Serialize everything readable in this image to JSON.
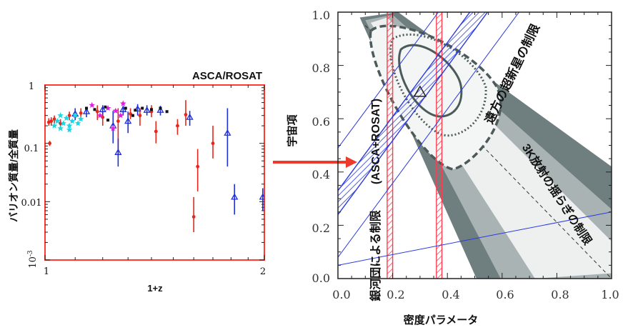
{
  "chart_data": [
    {
      "type": "scatter",
      "title": "ASCA/ROSAT",
      "xlabel": "1+z",
      "ylabel": "バリオン質量/全質量",
      "x_scale": "log",
      "y_scale": "log",
      "xlim": [
        1,
        2
      ],
      "ylim": [
        0.001,
        1
      ],
      "x_ticks": [
        "1",
        "2"
      ],
      "y_ticks": [
        "1",
        "0.1",
        "0.01",
        "10-3"
      ],
      "y_tick_sup": {
        "base": "10",
        "exp": "-3"
      },
      "colors": {
        "title": "#ff4d3a",
        "frame": "#ff3b30",
        "red": "#e8261c",
        "blue": "#1f2fd8",
        "cyan": "#19d7e6",
        "magenta": "#e020e0",
        "black": "#111111"
      },
      "series": [
        {
          "marker": "red-dot",
          "color": "#e8261c",
          "points": [
            {
              "x": 1.012,
              "y": 0.23,
              "lo": 0.2,
              "hi": 0.27
            },
            {
              "x": 1.02,
              "y": 0.24,
              "lo": 0.2,
              "hi": 0.28
            },
            {
              "x": 1.015,
              "y": 0.1,
              "lo": 0.09,
              "hi": 0.11
            },
            {
              "x": 1.03,
              "y": 0.26,
              "lo": 0.22,
              "hi": 0.3
            },
            {
              "x": 1.05,
              "y": 0.22,
              "lo": 0.18,
              "hi": 0.26
            },
            {
              "x": 1.08,
              "y": 0.3,
              "lo": 0.25,
              "hi": 0.35
            },
            {
              "x": 1.12,
              "y": 0.33,
              "lo": 0.27,
              "hi": 0.4
            },
            {
              "x": 1.18,
              "y": 0.35,
              "lo": 0.25,
              "hi": 0.45
            },
            {
              "x": 1.2,
              "y": 0.28,
              "lo": 0.2,
              "hi": 0.36
            },
            {
              "x": 1.26,
              "y": 0.24,
              "lo": 0.06,
              "hi": 0.4
            },
            {
              "x": 1.31,
              "y": 0.32,
              "lo": 0.26,
              "hi": 0.4
            },
            {
              "x": 1.35,
              "y": 0.3,
              "lo": 0.2,
              "hi": 0.4
            },
            {
              "x": 1.4,
              "y": 0.35,
              "lo": 0.28,
              "hi": 0.45
            },
            {
              "x": 1.42,
              "y": 0.16,
              "lo": 0.1,
              "hi": 0.24
            },
            {
              "x": 1.56,
              "y": 0.31,
              "lo": 0.2,
              "hi": 0.55
            },
            {
              "x": 1.6,
              "y": 0.0055,
              "lo": 0.003,
              "hi": 0.012
            },
            {
              "x": 1.62,
              "y": 0.04,
              "lo": 0.015,
              "hi": 0.08
            },
            {
              "x": 1.7,
              "y": 0.1,
              "lo": 0.055,
              "hi": 0.2
            },
            {
              "x": 1.52,
              "y": 0.2,
              "lo": 0.14,
              "hi": 0.26
            }
          ]
        },
        {
          "marker": "blue-triangle",
          "color": "#1f2fd8",
          "points": [
            {
              "x": 1.1,
              "y": 0.32,
              "lo": 0.25,
              "hi": 0.4
            },
            {
              "x": 1.14,
              "y": 0.35,
              "lo": 0.28,
              "hi": 0.42
            },
            {
              "x": 1.2,
              "y": 0.38,
              "lo": 0.3,
              "hi": 0.45
            },
            {
              "x": 1.24,
              "y": 0.2,
              "lo": 0.1,
              "hi": 0.36
            },
            {
              "x": 1.26,
              "y": 0.07,
              "lo": 0.04,
              "hi": 0.12
            },
            {
              "x": 1.28,
              "y": 0.38,
              "lo": 0.3,
              "hi": 0.44
            },
            {
              "x": 1.3,
              "y": 0.24,
              "lo": 0.15,
              "hi": 0.35
            },
            {
              "x": 1.34,
              "y": 0.39,
              "lo": 0.3,
              "hi": 0.47
            },
            {
              "x": 1.38,
              "y": 0.37,
              "lo": 0.3,
              "hi": 0.45
            },
            {
              "x": 1.44,
              "y": 0.37,
              "lo": 0.3,
              "hi": 0.44
            },
            {
              "x": 1.58,
              "y": 0.28,
              "lo": 0.2,
              "hi": 0.36
            },
            {
              "x": 1.78,
              "y": 0.15,
              "lo": 0.04,
              "hi": 0.4
            },
            {
              "x": 1.82,
              "y": 0.012,
              "lo": 0.006,
              "hi": 0.02
            },
            {
              "x": 1.99,
              "y": 0.012,
              "lo": 0.007,
              "hi": 0.017
            }
          ]
        },
        {
          "marker": "cyan-star",
          "color": "#19d7e6",
          "points": [
            {
              "x": 1.03,
              "y": 0.2
            },
            {
              "x": 1.04,
              "y": 0.24
            },
            {
              "x": 1.05,
              "y": 0.18
            },
            {
              "x": 1.06,
              "y": 0.22
            },
            {
              "x": 1.07,
              "y": 0.27
            },
            {
              "x": 1.08,
              "y": 0.2
            },
            {
              "x": 1.09,
              "y": 0.24
            },
            {
              "x": 1.1,
              "y": 0.3
            },
            {
              "x": 1.11,
              "y": 0.22
            },
            {
              "x": 1.05,
              "y": 0.3
            },
            {
              "x": 1.08,
              "y": 0.17
            },
            {
              "x": 1.12,
              "y": 0.26
            }
          ]
        },
        {
          "marker": "magenta-star",
          "color": "#e020e0",
          "points": [
            {
              "x": 1.16,
              "y": 0.45
            },
            {
              "x": 1.19,
              "y": 0.3
            },
            {
              "x": 1.22,
              "y": 0.4
            },
            {
              "x": 1.24,
              "y": 0.18
            },
            {
              "x": 1.28,
              "y": 0.48
            },
            {
              "x": 1.27,
              "y": 0.3
            },
            {
              "x": 1.25,
              "y": 0.36
            }
          ]
        },
        {
          "marker": "black-square",
          "color": "#111111",
          "points": [
            {
              "x": 1.14,
              "y": 0.4
            },
            {
              "x": 1.17,
              "y": 0.38
            },
            {
              "x": 1.21,
              "y": 0.42
            },
            {
              "x": 1.29,
              "y": 0.4
            },
            {
              "x": 1.33,
              "y": 0.37
            },
            {
              "x": 1.36,
              "y": 0.4
            },
            {
              "x": 1.4,
              "y": 0.38
            },
            {
              "x": 1.44,
              "y": 0.4
            },
            {
              "x": 1.47,
              "y": 0.35
            },
            {
              "x": 1.22,
              "y": 0.25
            },
            {
              "x": 1.32,
              "y": 0.3
            }
          ]
        }
      ]
    },
    {
      "type": "contour",
      "xlabel": "密度パラメータ",
      "ylabel": "宇宙項",
      "xlim": [
        0,
        1
      ],
      "ylim": [
        0,
        1
      ],
      "x_ticks": [
        "0.0",
        "0.2",
        "0.4",
        "0.6",
        "0.8",
        "1.0"
      ],
      "y_ticks": [
        "0.0",
        "0.2",
        "0.4",
        "0.6",
        "0.8",
        "1.0"
      ],
      "best_fit": {
        "x": 0.3,
        "y": 0.7
      },
      "cluster_band": {
        "xmin": 0.2,
        "xmax": 0.38,
        "label": "銀河団による制限 (ASCA+ROSAT)",
        "color": "#ff3b4e"
      },
      "sn_band": {
        "label": "遠方の超新星の制限",
        "color": "#2a3ae0",
        "lines": [
          {
            "x1": 0.0,
            "y1": 0.24,
            "x2": 1.0,
            "y2": 1.63
          },
          {
            "x1": 0.0,
            "y1": 0.33,
            "x2": 1.0,
            "y2": 1.72
          },
          {
            "x1": 0.0,
            "y1": 0.08,
            "x2": 1.0,
            "y2": 1.47
          },
          {
            "x1": 0.0,
            "y1": 0.49,
            "x2": 1.0,
            "y2": 1.88
          }
        ]
      },
      "cmb_band": {
        "label": "3K放射の揺らぎの制限",
        "axis": [
          {
            "x": 0.1,
            "y": 0.95
          },
          {
            "x": 1.0,
            "y": 0.0
          }
        ]
      },
      "arrow_color": "#ee3a2a",
      "annotations": {
        "sn": "遠方の超新星の制限",
        "cmb": "3K放射の揺らぎの制限",
        "cluster_a": "銀河団による制限",
        "cluster_b": "(ASCA+ROSAT)"
      }
    }
  ]
}
